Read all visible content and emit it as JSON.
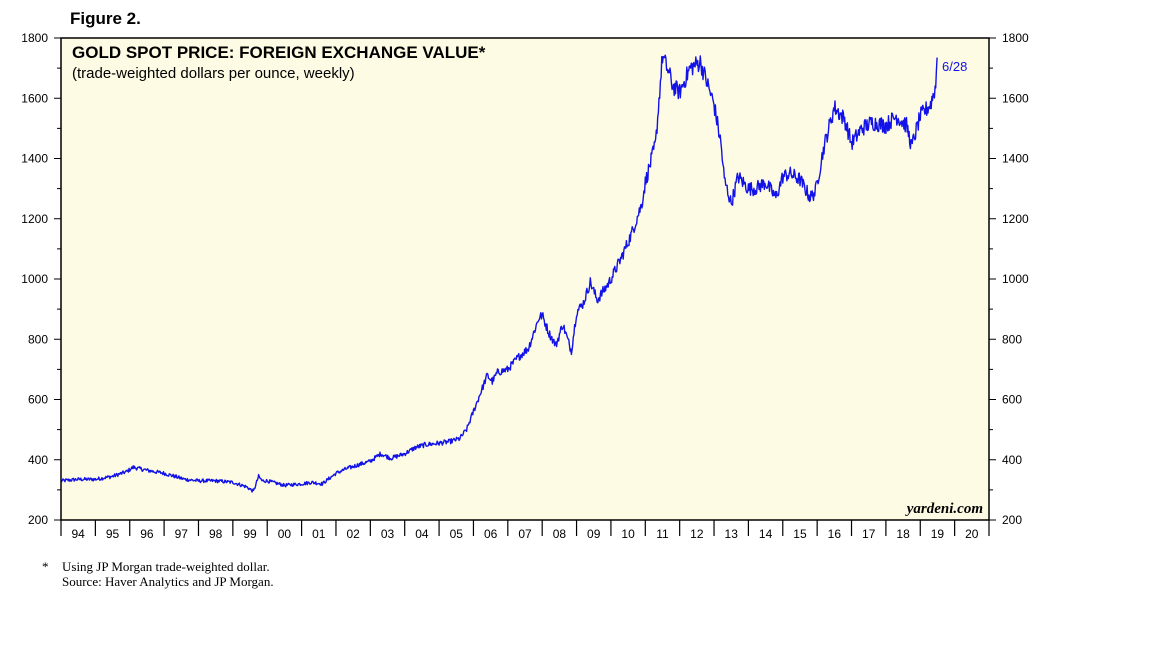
{
  "figure_label": "Figure 2.",
  "footnote": {
    "marker": "*",
    "line1": "Using JP Morgan trade-weighted dollar.",
    "line2": "Source: Haver Analytics and JP Morgan."
  },
  "colors": {
    "line": "#1212e8",
    "plot_bg": "#fdfbe3",
    "axis": "#000000"
  },
  "chart_data": {
    "type": "line",
    "title": "GOLD SPOT PRICE: FOREIGN EXCHANGE VALUE*",
    "subtitle": "(trade-weighted dollars per ounce, weekly)",
    "watermark": "yardeni.com",
    "end_label": "6/28",
    "ylim": [
      200,
      1800
    ],
    "yticks": [
      200,
      400,
      600,
      800,
      1000,
      1200,
      1400,
      1600,
      1800
    ],
    "ytick_labels": [
      "200",
      "400",
      "600",
      "800",
      "1000",
      "1200",
      "1400",
      "1600",
      "1800"
    ],
    "xlim": [
      1994.0,
      2021.0
    ],
    "xtick_labels": [
      "94",
      "95",
      "96",
      "97",
      "98",
      "99",
      "00",
      "01",
      "02",
      "03",
      "04",
      "05",
      "06",
      "07",
      "08",
      "09",
      "10",
      "11",
      "12",
      "13",
      "14",
      "15",
      "16",
      "17",
      "18",
      "19",
      "20"
    ],
    "grid": false,
    "series": [
      {
        "x": [
          1994.0,
          1994.5,
          1995.0,
          1995.5,
          1995.9,
          1996.1,
          1996.5,
          1997.0,
          1997.3,
          1997.6,
          1998.0,
          1998.5,
          1999.0,
          1999.4,
          1999.6,
          1999.75,
          1999.85,
          2000.0,
          2000.5,
          2001.0,
          2001.3,
          2001.6,
          2002.0,
          2002.3,
          2002.7,
          2003.0,
          2003.3,
          2003.6,
          2004.0,
          2004.3,
          2004.6,
          2005.0,
          2005.3,
          2005.6,
          2005.8,
          2006.0,
          2006.2,
          2006.4,
          2006.55,
          2006.7,
          2007.0,
          2007.3,
          2007.6,
          2007.9,
          2008.0,
          2008.2,
          2008.4,
          2008.6,
          2008.85,
          2009.0,
          2009.2,
          2009.4,
          2009.6,
          2009.9,
          2010.0,
          2010.3,
          2010.6,
          2010.9,
          2011.0,
          2011.3,
          2011.5,
          2011.7,
          2011.8,
          2012.0,
          2012.3,
          2012.6,
          2012.8,
          2013.0,
          2013.2,
          2013.3,
          2013.5,
          2013.7,
          2014.0,
          2014.2,
          2014.5,
          2014.8,
          2015.0,
          2015.2,
          2015.5,
          2015.8,
          2015.95,
          2016.2,
          2016.5,
          2016.8,
          2017.0,
          2017.3,
          2017.6,
          2018.0,
          2018.3,
          2018.6,
          2018.75,
          2019.0,
          2019.3,
          2019.45,
          2019.49
        ],
        "y": [
          330,
          335,
          335,
          345,
          360,
          375,
          365,
          355,
          345,
          335,
          330,
          330,
          325,
          310,
          295,
          345,
          330,
          330,
          315,
          320,
          325,
          320,
          355,
          370,
          385,
          395,
          420,
          405,
          420,
          440,
          450,
          455,
          460,
          470,
          500,
          560,
          620,
          680,
          660,
          690,
          700,
          740,
          770,
          870,
          880,
          820,
          780,
          850,
          760,
          890,
          920,
          990,
          930,
          980,
          1000,
          1070,
          1150,
          1250,
          1320,
          1450,
          1740,
          1680,
          1640,
          1620,
          1700,
          1720,
          1650,
          1580,
          1450,
          1330,
          1250,
          1340,
          1300,
          1300,
          1320,
          1270,
          1340,
          1350,
          1330,
          1270,
          1290,
          1440,
          1570,
          1530,
          1450,
          1500,
          1520,
          1510,
          1540,
          1510,
          1440,
          1540,
          1580,
          1640,
          1735
        ]
      }
    ]
  }
}
